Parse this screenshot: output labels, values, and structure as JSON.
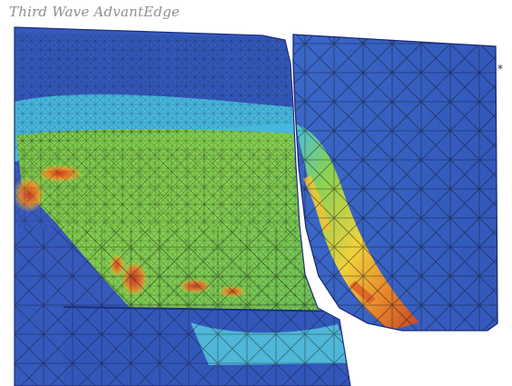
{
  "window": {
    "title": "Third Wave AdvantEdge"
  },
  "marker": {
    "glyph": "⁎"
  },
  "colors": {
    "background": "#ffffff",
    "blue_low": "#2e4fb6",
    "blue_mid": "#3d68c8",
    "cyan": "#56c8dd",
    "green": "#7fcb4f",
    "yellow": "#f2cb34",
    "orange": "#e77b24",
    "red": "#c63424",
    "mesh": "#111111"
  }
}
